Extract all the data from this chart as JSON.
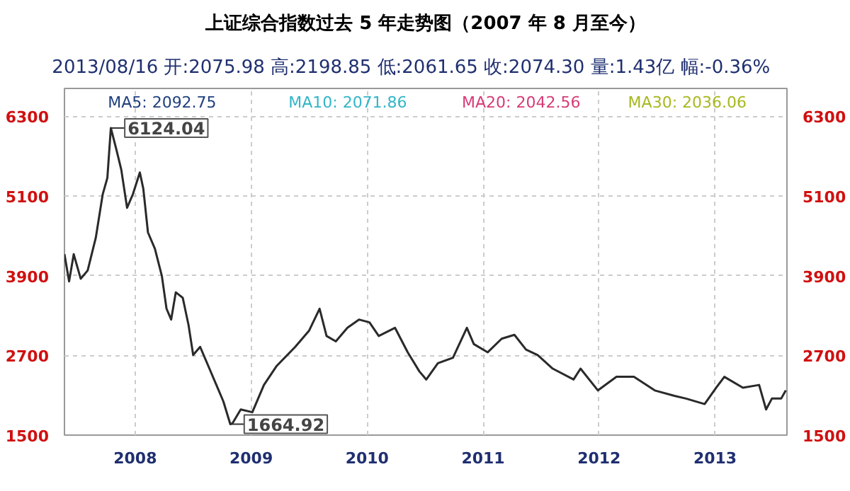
{
  "chart_data": {
    "type": "line",
    "title": "上证综合指数过去 5 年走势图（2007 年 8 月至今）",
    "subtitle": "2013/08/16 开:2075.98  高:2198.85  低:2061.65  收:2074.30  量:1.43亿  幅:-0.36%",
    "series": [
      {
        "color": "#2a2a2a",
        "x": [
          2007.39,
          2007.43,
          2007.47,
          2007.53,
          2007.59,
          2007.66,
          2007.72,
          2007.76,
          2007.79,
          2007.84,
          2007.88,
          2007.93,
          2007.98,
          2008.04,
          2008.07,
          2008.11,
          2008.17,
          2008.23,
          2008.27,
          2008.31,
          2008.35,
          2008.41,
          2008.46,
          2008.5,
          2008.56,
          2008.64,
          2008.7,
          2008.76,
          2008.82,
          2008.84,
          2008.91,
          2009.01,
          2009.11,
          2009.22,
          2009.38,
          2009.5,
          2009.59,
          2009.65,
          2009.73,
          2009.83,
          2009.93,
          2010.02,
          2010.1,
          2010.24,
          2010.35,
          2010.45,
          2010.51,
          2010.61,
          2010.74,
          2010.86,
          2010.92,
          2011.04,
          2011.16,
          2011.27,
          2011.37,
          2011.47,
          2011.6,
          2011.78,
          2011.84,
          2011.99,
          2012.15,
          2012.3,
          2012.48,
          2012.65,
          2012.75,
          2012.91,
          2013.01,
          2013.08,
          2013.24,
          2013.38,
          2013.44,
          2013.49,
          2013.57,
          2013.61
        ],
        "values": [
          4224,
          3814,
          4224,
          3855,
          3978,
          4470,
          5127,
          5373,
          6124,
          5783,
          5496,
          4922,
          5127,
          5455,
          5209,
          4552,
          4306,
          3896,
          3404,
          3240,
          3650,
          3568,
          3157,
          2706,
          2829,
          2501,
          2255,
          2009,
          1665,
          1680,
          1886,
          1845,
          2255,
          2542,
          2829,
          3075,
          3404,
          2993,
          2911,
          3116,
          3240,
          3198,
          2993,
          3116,
          2747,
          2460,
          2337,
          2583,
          2665,
          3116,
          2870,
          2747,
          2952,
          3010,
          2788,
          2706,
          2501,
          2337,
          2501,
          2173,
          2378,
          2378,
          2173,
          2091,
          2050,
          1968,
          2214,
          2378,
          2214,
          2255,
          1886,
          2050,
          2050,
          2173
        ]
      }
    ],
    "xlim": [
      2007.39,
      2013.62
    ],
    "xticks": [
      2008,
      2009,
      2010,
      2011,
      2012,
      2013
    ],
    "ylim": [
      1500,
      6720
    ],
    "yticks": [
      1500,
      2700,
      3900,
      5100,
      6300
    ],
    "y2lim": [
      1500,
      6720
    ],
    "y2ticks": [
      1500,
      2700,
      3900,
      5100,
      6300
    ],
    "grid": true,
    "line_style": "solid",
    "marker": "none",
    "annotations": [
      {
        "text": "6124.04",
        "x": 2007.79,
        "y": 6124.04
      },
      {
        "text": "1664.92",
        "x": 2008.82,
        "y": 1664.92
      },
      "MA5: 2092.75",
      "MA10: 2071.86",
      "MA20: 2042.56",
      "MA30: 2036.06"
    ]
  }
}
